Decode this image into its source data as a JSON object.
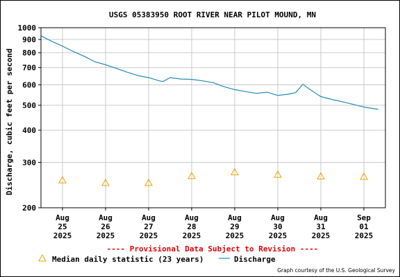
{
  "chart_data": {
    "type": "line",
    "title": "USGS 05383950 ROOT RIVER NEAR PILOT MOUND, MN",
    "ylabel": "Discharge, cubic feet per second",
    "yscale": "log",
    "ylim": [
      200,
      1000
    ],
    "yticks": [
      200,
      300,
      400,
      500,
      600,
      700,
      800,
      900,
      1000
    ],
    "xlim": [
      "2025-08-24T12:00",
      "2025-09-01T12:00"
    ],
    "xticks": [
      {
        "x": "2025-08-25",
        "label": [
          "Aug",
          "25",
          "2025"
        ]
      },
      {
        "x": "2025-08-26",
        "label": [
          "Aug",
          "26",
          "2025"
        ]
      },
      {
        "x": "2025-08-27",
        "label": [
          "Aug",
          "27",
          "2025"
        ]
      },
      {
        "x": "2025-08-28",
        "label": [
          "Aug",
          "28",
          "2025"
        ]
      },
      {
        "x": "2025-08-29",
        "label": [
          "Aug",
          "29",
          "2025"
        ]
      },
      {
        "x": "2025-08-30",
        "label": [
          "Aug",
          "30",
          "2025"
        ]
      },
      {
        "x": "2025-08-31",
        "label": [
          "Aug",
          "31",
          "2025"
        ]
      },
      {
        "x": "2025-09-01",
        "label": [
          "Sep",
          "01",
          "2025"
        ]
      }
    ],
    "grid": true,
    "colors": {
      "discharge": "#1f8ab8",
      "median": "#e8a100",
      "warning": "#e00000",
      "grid": "#c8c8c8"
    },
    "series": [
      {
        "name": "Discharge",
        "style": "line",
        "x": [
          "2025-08-24T12:00",
          "2025-08-24T18:00",
          "2025-08-25T00:00",
          "2025-08-25T06:00",
          "2025-08-25T12:00",
          "2025-08-25T18:00",
          "2025-08-26T00:00",
          "2025-08-26T06:00",
          "2025-08-26T12:00",
          "2025-08-26T18:00",
          "2025-08-27T00:00",
          "2025-08-27T06:00",
          "2025-08-27T08:00",
          "2025-08-27T12:00",
          "2025-08-27T18:00",
          "2025-08-28T00:00",
          "2025-08-28T06:00",
          "2025-08-28T12:00",
          "2025-08-28T18:00",
          "2025-08-29T00:00",
          "2025-08-29T06:00",
          "2025-08-29T12:00",
          "2025-08-29T18:00",
          "2025-08-30T00:00",
          "2025-08-30T06:00",
          "2025-08-30T10:00",
          "2025-08-30T14:00",
          "2025-08-30T18:00",
          "2025-08-31T00:00",
          "2025-08-31T06:00",
          "2025-08-31T12:00",
          "2025-08-31T18:00",
          "2025-09-01T00:00",
          "2025-09-01T08:00"
        ],
        "y": [
          930,
          885,
          848,
          808,
          775,
          738,
          718,
          695,
          672,
          652,
          640,
          622,
          618,
          640,
          632,
          630,
          622,
          612,
          590,
          575,
          565,
          556,
          562,
          546,
          552,
          560,
          603,
          575,
          540,
          527,
          516,
          504,
          492,
          482
        ]
      },
      {
        "name": "Median daily statistic (23 years)",
        "style": "triangle",
        "x": [
          "2025-08-25",
          "2025-08-26",
          "2025-08-27",
          "2025-08-28",
          "2025-08-29",
          "2025-08-30",
          "2025-08-31",
          "2025-09-01"
        ],
        "y": [
          256,
          250,
          250,
          266,
          275,
          269,
          265,
          264
        ]
      }
    ],
    "warning": "---- Provisional Data Subject to Revision ----",
    "legend_position": "bottom",
    "credit": "Graph courtesy of the U.S. Geological Survey"
  }
}
